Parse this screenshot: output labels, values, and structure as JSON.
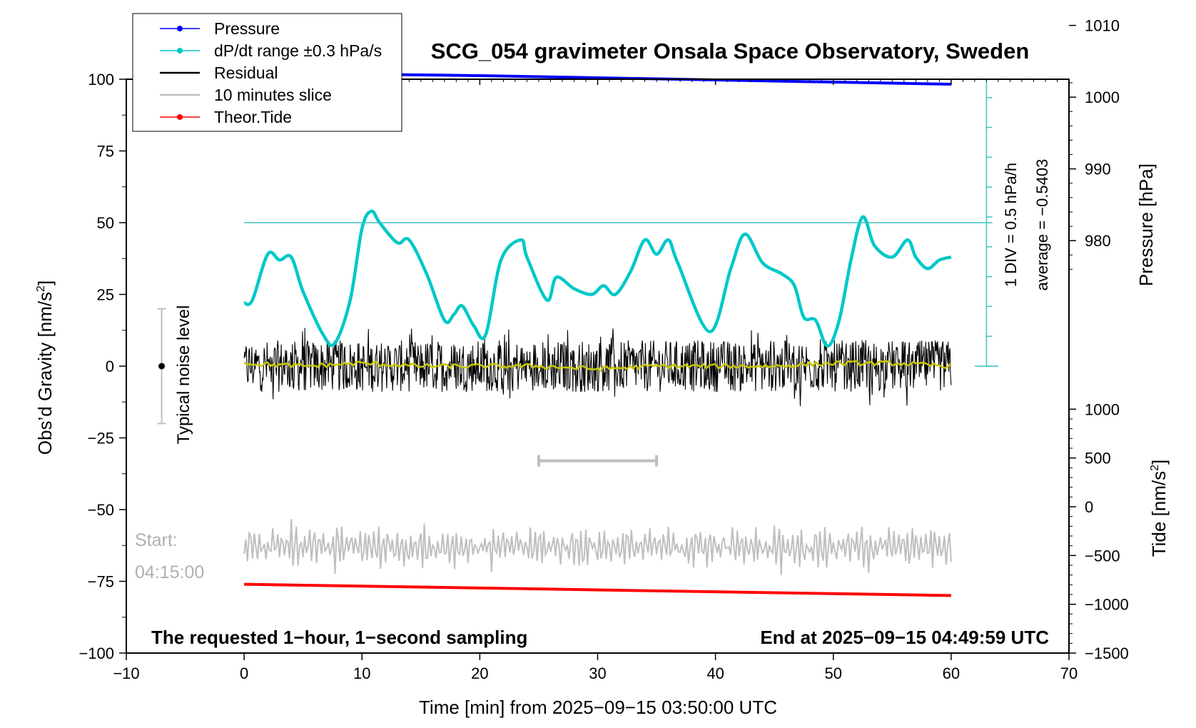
{
  "chart_data": {
    "type": "line",
    "title": "SCG_054 gravimeter Onsala Space Observatory, Sweden",
    "xlabel": "Time [min] from 2025−09−15 03:50:00 UTC",
    "ylabel": "Obs’d Gravity [nm/s",
    "ylabel_sup": "2",
    "ylabel_close": "]",
    "xlim": [
      -10,
      70
    ],
    "ylim": [
      -100,
      100
    ],
    "x_ticks": [
      -10,
      0,
      10,
      20,
      30,
      40,
      50,
      60,
      70
    ],
    "x_tick_labels": [
      "−10",
      "0",
      "10",
      "20",
      "30",
      "40",
      "50",
      "60",
      "70"
    ],
    "y_ticks": [
      -100,
      -75,
      -50,
      -25,
      0,
      25,
      50,
      75,
      100
    ],
    "y_tick_labels": [
      "−100",
      "−75",
      "−50",
      "−25",
      "0",
      "25",
      "50",
      "75",
      "100"
    ],
    "pressure_axis": {
      "label": "Pressure [hPa]",
      "ticks": [
        980,
        990,
        1000,
        1010
      ],
      "tick_labels": [
        "980",
        "990",
        "1000",
        "1010"
      ],
      "left_value_at_0": 962.5,
      "scale_per_gravity_unit": 0.4
    },
    "tide_axis": {
      "label": "Tide [nm/s",
      "label_sup": "2",
      "label_close": "]",
      "ticks": [
        -1500,
        -1000,
        -500,
        0,
        500,
        1000
      ],
      "tick_labels": [
        "−1500",
        "−1000",
        "−500",
        "0",
        "500",
        "1000"
      ],
      "value_at_gravity_minus100": -1500,
      "value_at_gravity_minus15": 1000
    },
    "legend": {
      "position": "top-left",
      "entries": [
        {
          "label": "Pressure",
          "color": "#0000ff",
          "marker": true
        },
        {
          "label": "dP/dt range ±0.3 hPa/s",
          "color": "#00c8c8",
          "marker": true
        },
        {
          "label": "Residual",
          "color": "#000000",
          "marker": false
        },
        {
          "label": "10 minutes slice",
          "color": "#bfbfbf",
          "marker": false
        },
        {
          "label": "Theor.Tide",
          "color": "#ff0000",
          "marker": true
        }
      ]
    },
    "series": [
      {
        "name": "Pressure",
        "color": "#0000ff",
        "axis": "pressure",
        "x": [
          0,
          10,
          20,
          30,
          40,
          50,
          60
        ],
        "values": [
          1003.5,
          1003.2,
          1003.0,
          1002.7,
          1002.4,
          1002.1,
          1001.8
        ]
      },
      {
        "name": "dP/dt range ±0.3 hPa/s",
        "color": "#00c8c8",
        "axis": "gravity",
        "x": [
          0,
          0.7,
          2,
          3,
          4,
          5,
          6.7,
          7.7,
          9,
          10,
          10.8,
          11.5,
          13,
          14,
          15.5,
          17,
          17.8,
          18.5,
          19.5,
          20.5,
          21.8,
          23.5,
          24,
          25.7,
          26.5,
          28,
          29.5,
          30.5,
          31.5,
          32.8,
          34,
          35,
          36,
          36.8,
          39.5,
          41.3,
          42.5,
          44,
          45.7,
          46.7,
          47.5,
          48.5,
          49.5,
          50.5,
          51.5,
          52.5,
          53.5,
          55,
          56.3,
          57,
          58,
          59,
          60
        ],
        "values": [
          22,
          23,
          39,
          37,
          38,
          26,
          11,
          8,
          23,
          48,
          54,
          50,
          43,
          44,
          32,
          16,
          18,
          21,
          14,
          11,
          37,
          44,
          38,
          23,
          31,
          27,
          25,
          28,
          25,
          33,
          44,
          39,
          44,
          36,
          12,
          34,
          46,
          36,
          32,
          28,
          17,
          16,
          7,
          16,
          37,
          52,
          42,
          38,
          44,
          38,
          34,
          37,
          38
        ]
      },
      {
        "name": "Residual",
        "color": "#000000",
        "axis": "gravity",
        "x_range": [
          0,
          60
        ],
        "amplitude_typical": 9,
        "amplitude_max": 14
      },
      {
        "name": "10 min moving average",
        "color": "#c8c800",
        "axis": "gravity",
        "x": [
          0,
          5,
          10,
          15,
          20,
          25,
          30,
          35,
          40,
          45,
          50,
          55,
          60
        ],
        "values": [
          1,
          0,
          1,
          0,
          0,
          0,
          -1,
          0,
          0,
          0,
          1,
          1,
          0
        ]
      },
      {
        "name": "10 minutes slice",
        "color": "#bfbfbf",
        "axis": "gravity",
        "x_range": [
          0,
          60
        ],
        "center": -63,
        "amplitude": 8,
        "slice_bar_range": [
          25,
          35
        ],
        "slice_bar_level": -33
      },
      {
        "name": "Theor.Tide",
        "color": "#ff0000",
        "axis": "tide",
        "x": [
          0,
          60
        ],
        "values": [
          -795,
          -910
        ]
      }
    ],
    "annotations": {
      "noise_label": "Typical noise level",
      "noise_range": [
        -20,
        20
      ],
      "noise_x": -7,
      "start_label_1": "Start:",
      "start_label_2": "04:15:00",
      "div_label": "1 DIV = 0.5 hPa/h",
      "avg_label": "average = −0.5403",
      "dpdt_reference_level": 50,
      "bottom_left": "The requested 1−hour, 1−second sampling",
      "bottom_right": "End at 2025−09−15 04:49:59 UTC"
    },
    "grid": false
  }
}
